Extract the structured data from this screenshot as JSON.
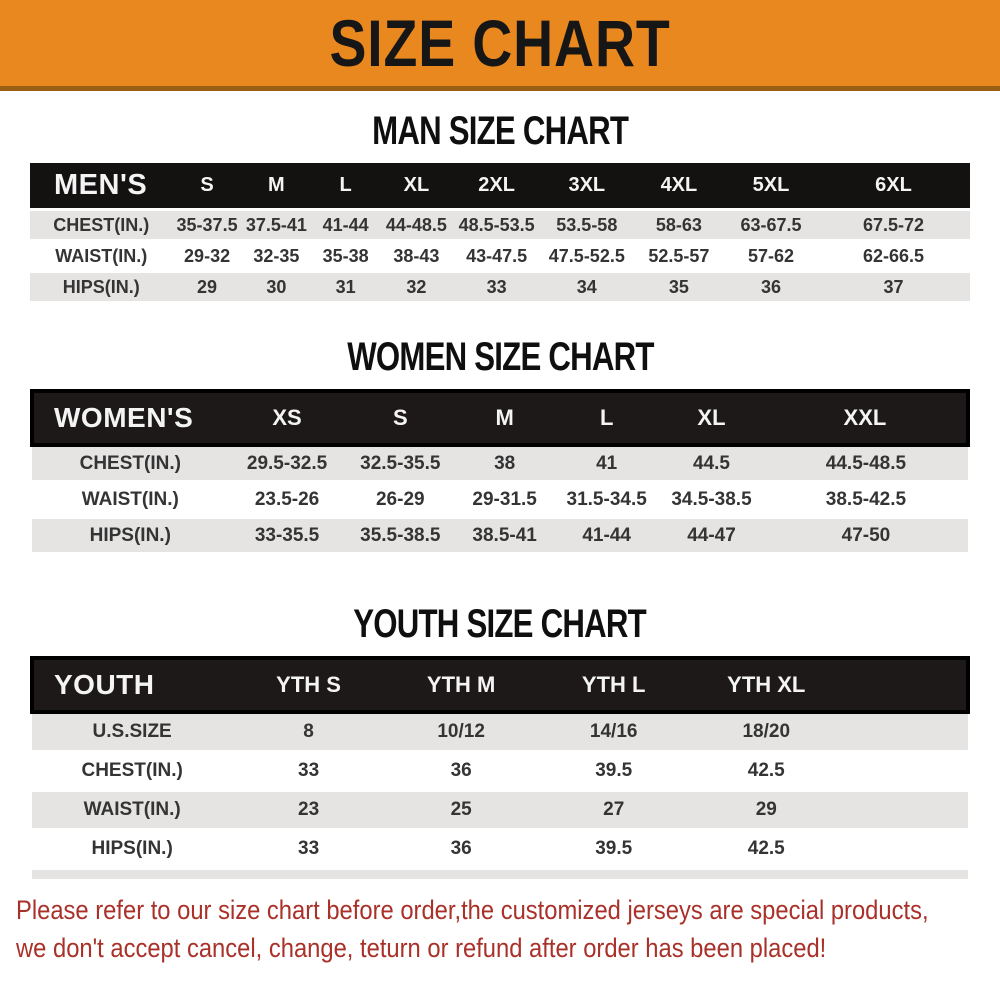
{
  "banner": {
    "title": "SIZE CHART"
  },
  "colors": {
    "banner_orange": "#E8881F",
    "header_black": "#141111",
    "stripe_gray": "#E5E4E3",
    "note_red": "#A93129"
  },
  "sections": [
    {
      "heading": "MAN SIZE CHART",
      "table": {
        "header": [
          "MEN'S",
          "S",
          "M",
          "L",
          "XL",
          "2XL",
          "3XL",
          "4XL",
          "5XL",
          "6XL"
        ],
        "col_widths": [
          "15%",
          "7.3%",
          "7.3%",
          "7.3%",
          "7.6%",
          "9.3%",
          "9.7%",
          "9.7%",
          "9.7%",
          "16.1%"
        ],
        "rows": [
          {
            "label": "CHEST(IN.)",
            "values": [
              "35-37.5",
              "37.5-41",
              "41-44",
              "44-48.5",
              "48.5-53.5",
              "53.5-58",
              "58-63",
              "63-67.5",
              "67.5-72"
            ]
          },
          {
            "label": "WAIST(IN.)",
            "values": [
              "29-32",
              "32-35",
              "35-38",
              "38-43",
              "43-47.5",
              "47.5-52.5",
              "52.5-57",
              "57-62",
              "62-66.5"
            ]
          },
          {
            "label": "HIPS(IN.)",
            "values": [
              "29",
              "30",
              "31",
              "32",
              "33",
              "34",
              "35",
              "36",
              "37"
            ]
          }
        ]
      }
    },
    {
      "heading": "WOMEN SIZE CHART",
      "table": {
        "header": [
          "WOMEN'S",
          "XS",
          "S",
          "M",
          "L",
          "XL",
          "XXL"
        ],
        "col_widths": [
          "21%",
          "12.5%",
          "11.7%",
          "10.6%",
          "11.2%",
          "11.2%",
          "21.8%"
        ],
        "rows": [
          {
            "label": "CHEST(IN.)",
            "values": [
              "29.5-32.5",
              "32.5-35.5",
              "38",
              "41",
              "44.5",
              "44.5-48.5"
            ]
          },
          {
            "label": "WAIST(IN.)",
            "values": [
              "23.5-26",
              "26-29",
              "29-31.5",
              "31.5-34.5",
              "34.5-38.5",
              "38.5-42.5"
            ]
          },
          {
            "label": "HIPS(IN.)",
            "values": [
              "33-35.5",
              "35.5-38.5",
              "38.5-41",
              "41-44",
              "44-47",
              "47-50"
            ]
          }
        ]
      }
    },
    {
      "heading": "YOUTH SIZE CHART",
      "table": {
        "header": [
          "YOUTH",
          "YTH S",
          "YTH M",
          "YTH L",
          "YTH XL"
        ],
        "col_widths": [
          "21.4%",
          "16.3%",
          "16.3%",
          "16.3%",
          "16.3%",
          "13.4%"
        ],
        "trailing_divider": true,
        "rows": [
          {
            "label": "U.S.SIZE",
            "values": [
              "8",
              "10/12",
              "14/16",
              "18/20"
            ]
          },
          {
            "label": "CHEST(IN.)",
            "values": [
              "33",
              "36",
              "39.5",
              "42.5"
            ]
          },
          {
            "label": "WAIST(IN.)",
            "values": [
              "23",
              "25",
              "27",
              "29"
            ]
          },
          {
            "label": "HIPS(IN.)",
            "values": [
              "33",
              "36",
              "39.5",
              "42.5"
            ]
          }
        ]
      }
    }
  ],
  "footer": {
    "lines": [
      "Please refer to our size chart before order,the customized jerseys are special products,",
      "we don't accept cancel, change, teturn or refund after order has been placed!"
    ]
  }
}
